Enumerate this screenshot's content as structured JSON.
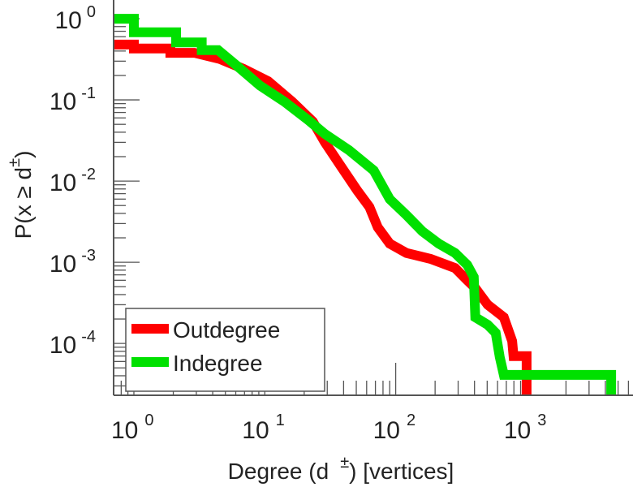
{
  "chart_data": {
    "type": "line",
    "title": "",
    "xlabel": "Degree (d ±) [vertices]",
    "xlabel_main": "Degree (d",
    "xlabel_sup": "±",
    "xlabel_tail": ") [vertices]",
    "ylabel_main": "P(x ≥ d",
    "ylabel_sup": "±",
    "ylabel_tail": ")",
    "xscale": "log",
    "yscale": "log",
    "xlim": [
      0.7,
      6500
    ],
    "ylim": [
      2.3e-05,
      1.7
    ],
    "x_ticks": [
      {
        "value": 1,
        "base": "10",
        "exp": "0"
      },
      {
        "value": 10,
        "base": "10",
        "exp": "1"
      },
      {
        "value": 100,
        "base": "10",
        "exp": "2"
      },
      {
        "value": 1000,
        "base": "10",
        "exp": "3"
      }
    ],
    "y_ticks": [
      {
        "value": 1,
        "base": "10",
        "exp": "0"
      },
      {
        "value": 0.1,
        "base": "10",
        "exp": "-1"
      },
      {
        "value": 0.01,
        "base": "10",
        "exp": "-2"
      },
      {
        "value": 0.001,
        "base": "10",
        "exp": "-3"
      },
      {
        "value": 0.0001,
        "base": "10",
        "exp": "-4"
      }
    ],
    "grid": false,
    "legend_position": "bottom-left",
    "series": [
      {
        "name": "Outdegree",
        "color": "#ff0000",
        "x": [
          0.7,
          1,
          1,
          1.9,
          1.9,
          2.9,
          4.5,
          6.9,
          10.6,
          16.2,
          23.3,
          28.8,
          38.4,
          51,
          63,
          73,
          90,
          121,
          185,
          284,
          352,
          406,
          504,
          670,
          776,
          795,
          1000,
          1000
        ],
        "y": [
          0.48,
          0.48,
          0.43,
          0.43,
          0.38,
          0.38,
          0.32,
          0.24,
          0.17,
          0.095,
          0.054,
          0.03,
          0.015,
          0.0076,
          0.0048,
          0.0027,
          0.0017,
          0.0013,
          0.0011,
          0.00085,
          0.0006,
          0.00048,
          0.0003,
          0.00021,
          0.000107,
          7e-05,
          7e-05,
          2.3e-05
        ]
      },
      {
        "name": "Indegree",
        "color": "#00e000",
        "x": [
          0.7,
          1,
          1,
          2.1,
          2.1,
          3.3,
          3.3,
          4.4,
          6.0,
          9.2,
          14.1,
          21.6,
          28.8,
          44,
          68,
          90,
          121,
          160,
          213,
          284,
          352,
          395,
          406,
          504,
          581,
          624,
          670,
          4430,
          4430
        ],
        "y": [
          1.0,
          1.0,
          0.68,
          0.68,
          0.51,
          0.51,
          0.41,
          0.41,
          0.27,
          0.15,
          0.095,
          0.056,
          0.038,
          0.024,
          0.0135,
          0.006,
          0.0038,
          0.0024,
          0.0017,
          0.0013,
          0.00093,
          0.00066,
          0.00021,
          0.00017,
          0.000135,
          6.8e-05,
          4.1e-05,
          4.1e-05,
          2.3e-05
        ]
      }
    ]
  }
}
